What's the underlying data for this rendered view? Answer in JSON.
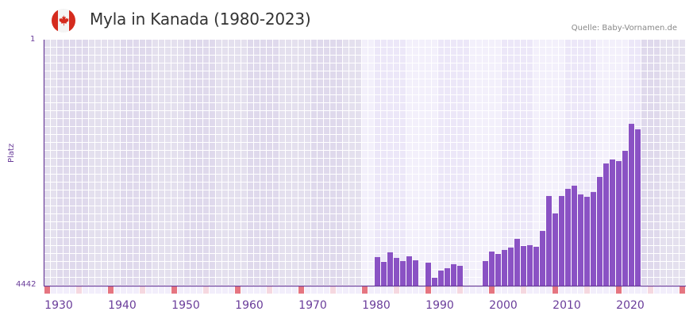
{
  "header": {
    "title": "Myla in Kanada (1980-2023)",
    "source": "Quelle: Baby-Vornamen.de",
    "flag_icon": "canada-flag-icon"
  },
  "axis": {
    "y_top_label": "1",
    "y_bottom_label": "4442",
    "y_title": "Platz",
    "x_ticks": [
      "1930",
      "1940",
      "1950",
      "1960",
      "1970",
      "1980",
      "1990",
      "2000",
      "2010",
      "2020"
    ]
  },
  "colors": {
    "bar": "#8a52c4",
    "axis": "#6a3d9a",
    "grid_dark_a": "#e4e0ee",
    "grid_dark_b": "#dfd9ec",
    "grid_light_a": "#f3f0fb",
    "grid_light_b": "#ece7f8",
    "decade_marker": "#e57580",
    "halfdecade_marker": "#f5d8e0"
  },
  "chart_data": {
    "type": "bar",
    "title": "Myla in Kanada (1980-2023)",
    "xlabel": "",
    "ylabel": "Platz",
    "ylim": [
      4442,
      1
    ],
    "y_inverted": true,
    "x_range": [
      1928,
      2028
    ],
    "data_range_highlight": [
      1978,
      2021
    ],
    "grid": true,
    "legend": null,
    "x": [
      1980,
      1981,
      1982,
      1983,
      1984,
      1985,
      1986,
      1988,
      1989,
      1990,
      1991,
      1992,
      1993,
      1997,
      1998,
      1999,
      2000,
      2001,
      2002,
      2003,
      2004,
      2005,
      2006,
      2007,
      2008,
      2009,
      2010,
      2011,
      2012,
      2013,
      2014,
      2015,
      2016,
      2017,
      2018,
      2019,
      2020,
      2021
    ],
    "values": [
      3926,
      4012,
      3840,
      3941,
      3998,
      3912,
      3984,
      4027,
      4299,
      4170,
      4127,
      4055,
      4084,
      3998,
      3826,
      3869,
      3797,
      3754,
      3597,
      3726,
      3711,
      3740,
      3454,
      2823,
      3138,
      2823,
      2694,
      2637,
      2795,
      2838,
      2752,
      2479,
      2236,
      2164,
      2193,
      2007,
      1520,
      1620
    ]
  }
}
